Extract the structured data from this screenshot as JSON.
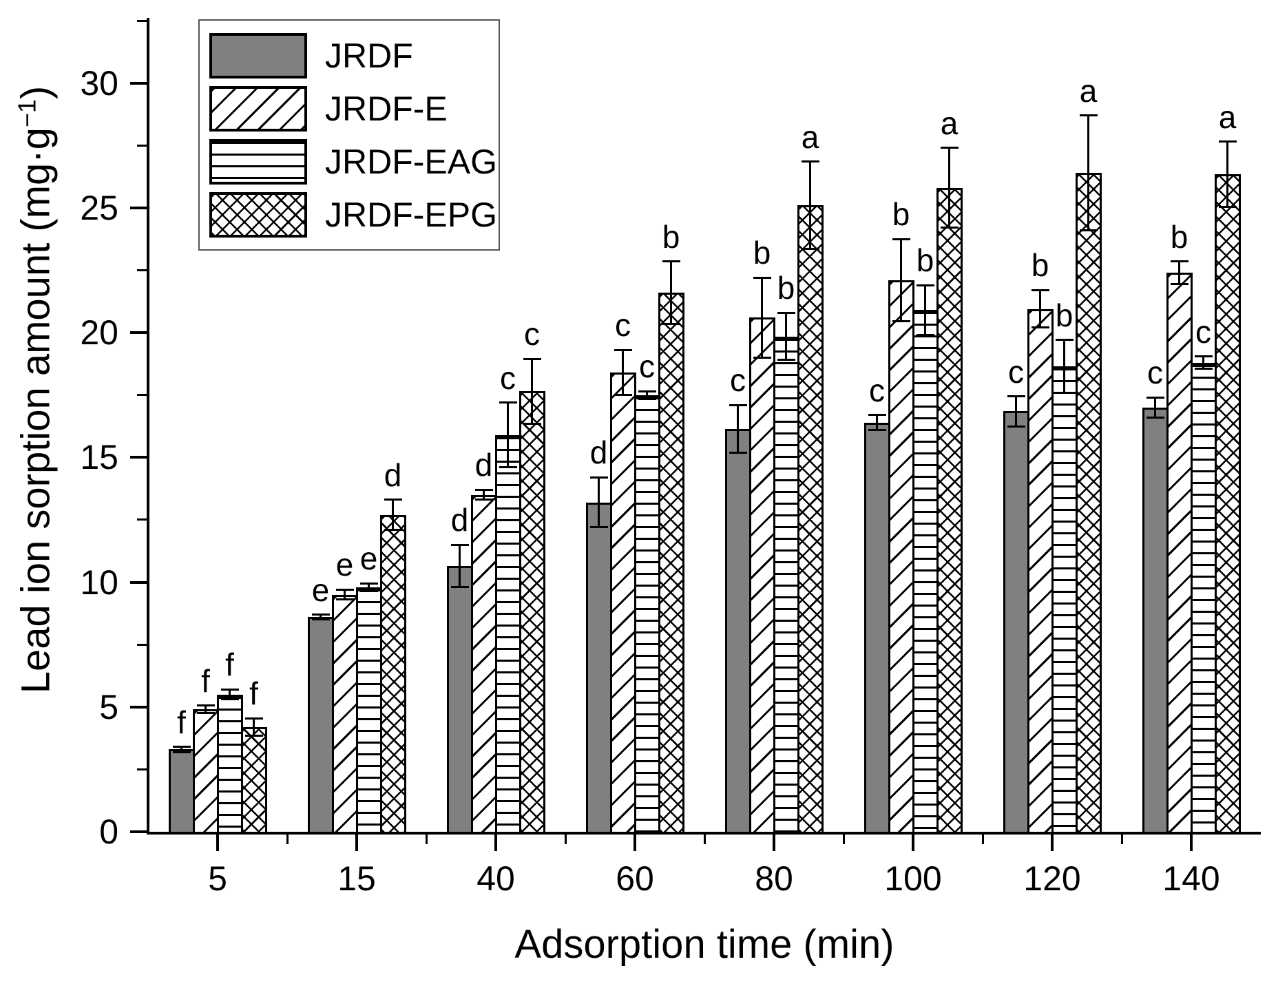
{
  "chart_data": {
    "type": "bar",
    "title": "",
    "xlabel": "Adsorption time (min)",
    "ylabel": "Lead ion sorption amount (mg·g−1)",
    "ylabel_main": "Lead ion sorption amount (mg·g",
    "ylabel_sup": "−1",
    "ylabel_close": ")",
    "ylim": [
      0,
      32.5
    ],
    "yticks": [
      0,
      5,
      10,
      15,
      20,
      25,
      30
    ],
    "ytick_minor_step": 2.5,
    "grid": false,
    "legend_position": "top-left",
    "categories": [
      "5",
      "15",
      "40",
      "60",
      "80",
      "100",
      "120",
      "140"
    ],
    "series": [
      {
        "name": "JRDF",
        "pattern": "solid-gray",
        "color": "#808080",
        "values": [
          3.3,
          8.6,
          10.65,
          13.2,
          16.15,
          16.4,
          16.85,
          17.0
        ],
        "errors": [
          0.1,
          0.1,
          0.85,
          1.0,
          0.95,
          0.3,
          0.6,
          0.4
        ],
        "letters": [
          "f",
          "e",
          "d",
          "d",
          "c",
          "c",
          "c",
          "c"
        ]
      },
      {
        "name": "JRDF-E",
        "pattern": "diagonal-hatch",
        "color": "#000000",
        "values": [
          4.9,
          9.5,
          13.5,
          18.4,
          20.6,
          22.1,
          20.95,
          22.4
        ],
        "errors": [
          0.15,
          0.2,
          0.2,
          0.9,
          1.6,
          1.65,
          0.75,
          0.45
        ],
        "letters": [
          "f",
          "e",
          "d",
          "c",
          "b",
          "b",
          "b",
          "b"
        ]
      },
      {
        "name": "JRDF-EAG",
        "pattern": "horizontal-lines",
        "color": "#000000",
        "values": [
          5.5,
          9.8,
          15.9,
          17.5,
          19.85,
          20.9,
          18.65,
          18.8
        ],
        "errors": [
          0.2,
          0.15,
          1.3,
          0.15,
          0.95,
          1.0,
          1.05,
          0.25
        ],
        "letters": [
          "f",
          "e",
          "c",
          "c",
          "b",
          "b",
          "b",
          "c"
        ]
      },
      {
        "name": "JRDF-EPG",
        "pattern": "crosshatch",
        "color": "#000000",
        "values": [
          4.2,
          12.7,
          17.65,
          21.6,
          25.1,
          25.8,
          26.4,
          26.35
        ],
        "errors": [
          0.35,
          0.6,
          1.3,
          1.25,
          1.75,
          1.6,
          2.3,
          1.3
        ],
        "letters": [
          "f",
          "d",
          "c",
          "b",
          "a",
          "a",
          "a",
          "a"
        ]
      }
    ]
  }
}
